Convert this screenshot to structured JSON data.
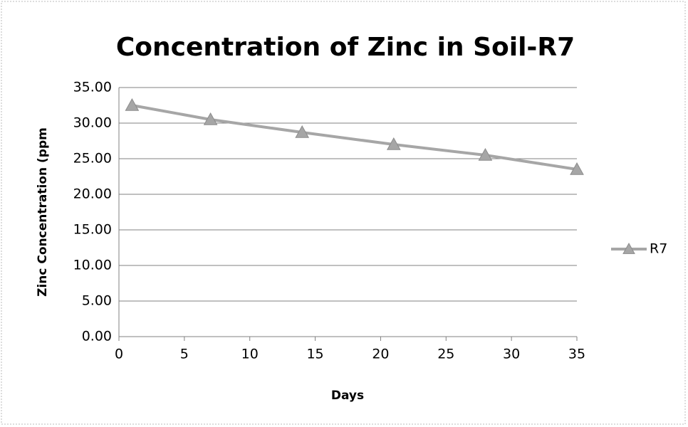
{
  "chart_data": {
    "type": "line",
    "title": "Concentration of Zinc in Soil-R7",
    "x_label": "Days",
    "y_label": "Zinc Concentration (ppm",
    "x": [
      1,
      7,
      14,
      21,
      28,
      35
    ],
    "series": [
      {
        "name": "R7",
        "color": "#a6a6a6",
        "values": [
          32.5,
          30.5,
          28.7,
          27.0,
          25.5,
          23.5
        ]
      }
    ],
    "xlim": [
      0,
      35
    ],
    "xticks": [
      0,
      5,
      10,
      15,
      20,
      25,
      30,
      35
    ],
    "ylim": [
      0,
      35
    ],
    "yticks": [
      {
        "value": 0,
        "label": "0.00"
      },
      {
        "value": 5,
        "label": "5.00"
      },
      {
        "value": 10,
        "label": "10.00"
      },
      {
        "value": 15,
        "label": "15.00"
      },
      {
        "value": 20,
        "label": "20.00"
      },
      {
        "value": 25,
        "label": "25.00"
      },
      {
        "value": 30,
        "label": "30.00"
      },
      {
        "value": 35,
        "label": "35.00"
      }
    ],
    "grid": true,
    "legend": "right"
  }
}
